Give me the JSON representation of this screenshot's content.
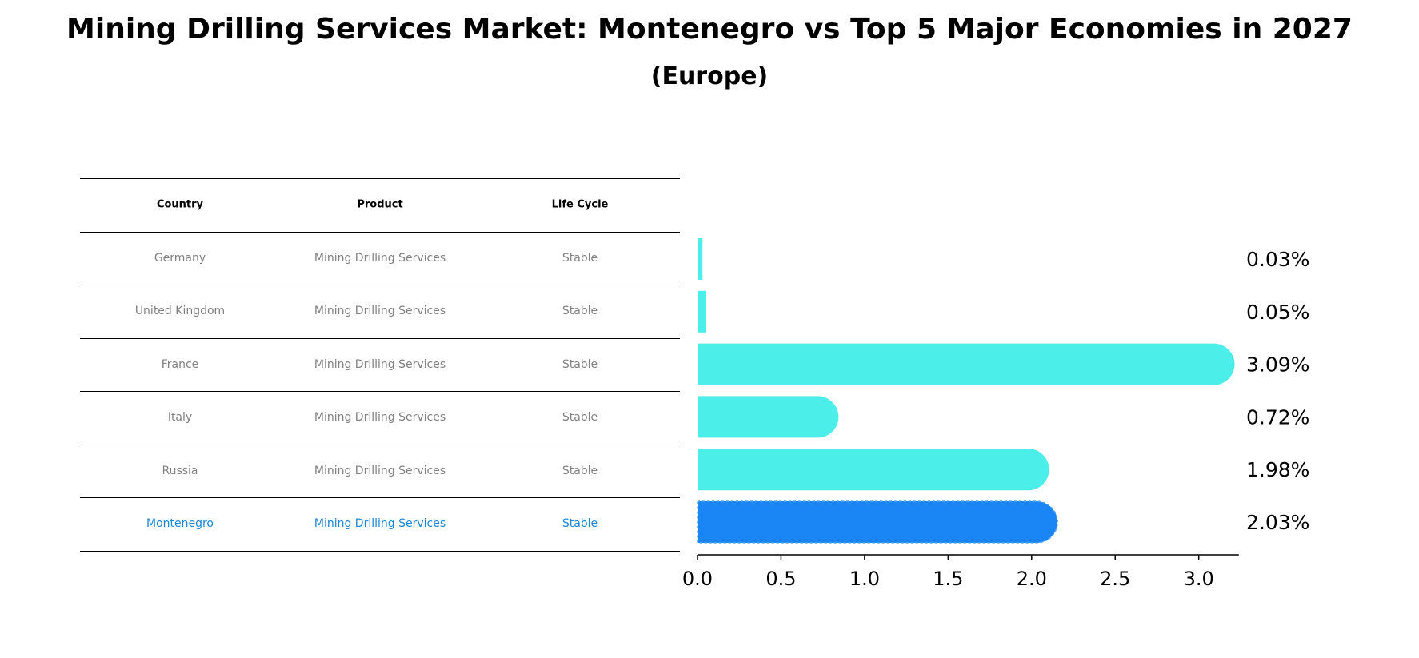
{
  "title": "Mining Drilling Services Market: Montenegro vs Top 5 Major Economies in 2027",
  "subtitle": "(Europe)",
  "table": {
    "headers": [
      "Country",
      "Product",
      "Life Cycle"
    ],
    "rows": [
      [
        "Germany",
        "Mining Drilling Services",
        "Stable"
      ],
      [
        "United Kingdom",
        "Mining Drilling Services",
        "Stable"
      ],
      [
        "France",
        "Mining Drilling Services",
        "Stable"
      ],
      [
        "Italy",
        "Mining Drilling Services",
        "Stable"
      ],
      [
        "Russia",
        "Mining Drilling Services",
        "Stable"
      ],
      [
        "Montenegro",
        "Mining Drilling Services",
        "Stable"
      ]
    ],
    "highlight_row": 5
  },
  "colors": {
    "bar": "#4ceeea",
    "highlight_bar": "#1a86f5",
    "highlight_text": "#1a86d6",
    "row_text": "#808080"
  },
  "chart_data": {
    "type": "bar",
    "orientation": "horizontal",
    "categories": [
      "Germany",
      "United Kingdom",
      "France",
      "Italy",
      "Russia",
      "Montenegro"
    ],
    "values": [
      0.03,
      0.05,
      3.09,
      0.72,
      1.98,
      2.03
    ],
    "value_labels": [
      "0.03%",
      "0.05%",
      "3.09%",
      "0.72%",
      "1.98%",
      "2.03%"
    ],
    "highlight": "Montenegro",
    "xlim": [
      0,
      3.24
    ],
    "xticks": [
      0.0,
      0.5,
      1.0,
      1.5,
      2.0,
      2.5,
      3.0
    ],
    "xtick_labels": [
      "0.0",
      "0.5",
      "1.0",
      "1.5",
      "2.0",
      "2.5",
      "3.0"
    ],
    "xlabel": "",
    "ylabel": ""
  }
}
